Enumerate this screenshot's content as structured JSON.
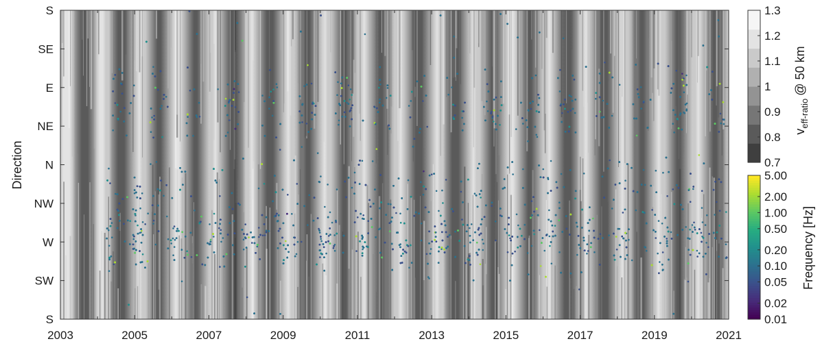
{
  "chart_data": {
    "type": "scatter",
    "ylabel": "Direction",
    "x_ticks": [
      "2003",
      "2005",
      "2007",
      "2009",
      "2011",
      "2013",
      "2015",
      "2017",
      "2019",
      "2021"
    ],
    "x_range": [
      2003,
      2021
    ],
    "y_ticks": [
      "S",
      "SE",
      "E",
      "NE",
      "N",
      "NW",
      "W",
      "SW",
      "S"
    ],
    "y_range_deg": [
      -180,
      180
    ],
    "background": {
      "description": "seasonal v_eff-ratio at 50 km, grayscale field",
      "colorbar_label_main": "v",
      "colorbar_label_sub": "eff-ratio",
      "colorbar_label_tail": "@ 50 km",
      "ticks": [
        "1.3",
        "1.2",
        "1.1",
        "1",
        "0.9",
        "0.8",
        "0.7"
      ],
      "range": [
        0.7,
        1.3
      ],
      "colors": [
        "#3f3f3f",
        "#5a5a5a",
        "#767676",
        "#939393",
        "#b0b0b0",
        "#cacaca",
        "#e3e3e3",
        "#f5f5f5"
      ]
    },
    "points": {
      "colorbar_label": "Frequency [Hz]",
      "ticks": [
        "5.00",
        "2.00",
        "1.00",
        "0.50",
        "0.20",
        "0.10",
        "0.05",
        "0.02",
        "0.01"
      ],
      "range": [
        0.01,
        5
      ],
      "scale": "log",
      "colormap": [
        "#440154",
        "#472c7a",
        "#3b518b",
        "#2c718e",
        "#21908d",
        "#27ad81",
        "#5cc863",
        "#aadc32",
        "#fde725"
      ],
      "data_start": 2004.25,
      "data_end": 2021
    }
  }
}
